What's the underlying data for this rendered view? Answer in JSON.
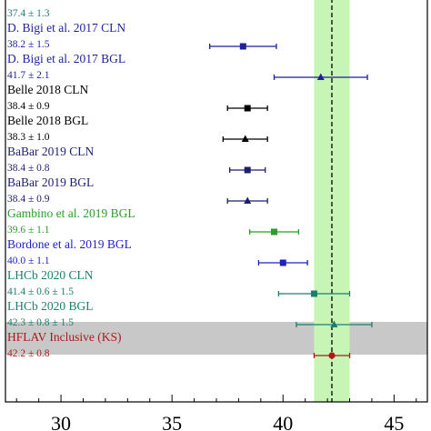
{
  "chart_data": {
    "type": "forest",
    "xlim": [
      27.5,
      46.5
    ],
    "xticks": [
      30,
      35,
      40,
      45
    ],
    "reference": {
      "central": 42.2,
      "band": [
        41.4,
        43.0
      ],
      "band_color": "#c6f5b5",
      "line_color": "#000000"
    },
    "entries": [
      {
        "label": "",
        "value_text": "37.4 ± 1.3",
        "value": null,
        "err": null,
        "marker": "none",
        "color": "#1a7f70"
      },
      {
        "label": "D. Bigi et al. 2017 CLN",
        "value_text": "38.2 ± 1.5",
        "value": 38.2,
        "err": 1.5,
        "marker": "square",
        "color": "#1f1fa0"
      },
      {
        "label": "D. Bigi et al. 2017 BGL",
        "value_text": "41.7 ± 2.1",
        "value": 41.7,
        "err": 2.1,
        "marker": "triangle",
        "color": "#1f1fa0"
      },
      {
        "label": "Belle 2018 CLN",
        "value_text": "38.4 ± 0.9",
        "value": 38.4,
        "err": 0.9,
        "marker": "square",
        "color": "#000000"
      },
      {
        "label": "Belle 2018 BGL",
        "value_text": "38.3 ± 1.0",
        "value": 38.3,
        "err": 1.0,
        "marker": "triangle",
        "color": "#000000"
      },
      {
        "label": "BaBar 2019 CLN",
        "value_text": "38.4 ± 0.8",
        "value": 38.4,
        "err": 0.8,
        "marker": "square",
        "color": "#1f1f70"
      },
      {
        "label": "BaBar 2019 BGL",
        "value_text": "38.4 ± 0.9",
        "value": 38.4,
        "err": 0.9,
        "marker": "triangle",
        "color": "#1f1f70"
      },
      {
        "label": "Gambino et al. 2019 BGL",
        "value_text": "39.6 ± 1.1",
        "value": 39.6,
        "err": 1.1,
        "marker": "square",
        "color": "#2a9d2a"
      },
      {
        "label": "Bordone et al. 2019 BGL",
        "value_text": "40.0 ± 1.1",
        "value": 40.0,
        "err": 1.1,
        "marker": "square",
        "color": "#1f1fc8"
      },
      {
        "label": "LHCb 2020 CLN",
        "value_text": "41.4 ± 0.6 ± 1.5",
        "value": 41.4,
        "err": 1.6,
        "marker": "square",
        "color": "#1a7f70"
      },
      {
        "label": "LHCb 2020 BGL",
        "value_text": "42.3 ± 0.8 ± 1.5",
        "value": 42.3,
        "err": 1.7,
        "marker": "triangle",
        "color": "#1a7f70"
      },
      {
        "label": "HFLAV Inclusive (KS)",
        "value_text": "42.2 ± 0.8",
        "value": 42.2,
        "err": 0.8,
        "marker": "circle",
        "color": "#b01818",
        "highlight": true
      }
    ],
    "highlight_color": "#c8c8c8"
  }
}
